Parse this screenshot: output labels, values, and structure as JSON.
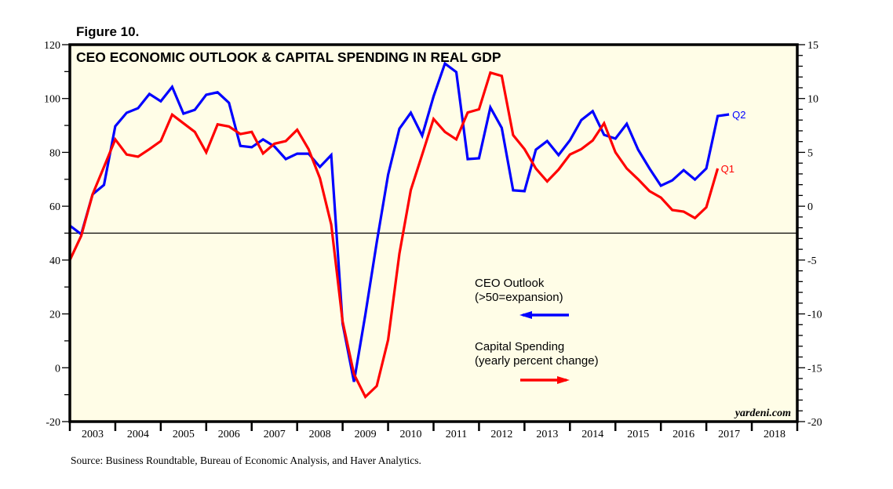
{
  "figure_label": "Figure 10.",
  "source_note": "Source: Business Roundtable, Bureau of Economic Analysis, and Haver Analytics.",
  "watermark": "yardeni.com",
  "colors": {
    "plot_background": "#FFFDE7",
    "ceo_outlook": "#0000FF",
    "capital_spending": "#FF0000",
    "axis": "#000000"
  },
  "chart_data": {
    "type": "line",
    "title": "CEO ECONOMIC OUTLOOK & CAPITAL SPENDING IN REAL GDP",
    "xlabel": "",
    "x_range": [
      2003,
      2019
    ],
    "x_tick_labels": [
      "2003",
      "2004",
      "2005",
      "2006",
      "2007",
      "2008",
      "2009",
      "2010",
      "2011",
      "2012",
      "2013",
      "2014",
      "2015",
      "2016",
      "2017",
      "2018"
    ],
    "x_start_quarter": "2002Q4",
    "frequency": "quarterly",
    "left_axis": {
      "label": "",
      "ylim": [
        -20,
        120
      ],
      "major_ticks": [
        -20,
        0,
        20,
        40,
        60,
        80,
        100,
        120
      ],
      "minor_step": 10
    },
    "right_axis": {
      "label": "",
      "ylim": [
        -20,
        15
      ],
      "major_ticks": [
        -20,
        -15,
        -10,
        -5,
        0,
        5,
        10,
        15
      ],
      "minor_step": 1
    },
    "reference_line": {
      "axis": "left",
      "value": 50
    },
    "grid": false,
    "legend": [
      {
        "series": "CEO Outlook",
        "lines": [
          "CEO Outlook",
          "(>50=expansion)"
        ],
        "arrow": "left",
        "placement": "center-right"
      },
      {
        "series": "Capital Spending",
        "lines": [
          "Capital Spending",
          "(yearly percent change)"
        ],
        "arrow": "right",
        "placement": "center-right"
      }
    ],
    "series": [
      {
        "name": "CEO Outlook",
        "axis": "left",
        "end_label": "Q2",
        "values": [
          52.8,
          49.6,
          64.4,
          67.9,
          89.7,
          94.7,
          96.4,
          101.7,
          99.0,
          104.3,
          94.4,
          95.8,
          101.4,
          102.3,
          98.4,
          82.4,
          81.9,
          84.8,
          82.2,
          77.5,
          79.5,
          79.5,
          74.6,
          79.0,
          16.4,
          -5.2,
          19.8,
          46.6,
          71.7,
          88.8,
          94.7,
          86.2,
          100.8,
          113.0,
          109.8,
          77.5,
          77.8,
          96.7,
          89.1,
          65.9,
          65.6,
          81.0,
          84.2,
          79.0,
          84.5,
          92.0,
          95.3,
          86.5,
          85.1,
          90.6,
          81.0,
          74.0,
          67.6,
          69.6,
          73.4,
          69.9,
          74.0,
          93.5,
          94.1
        ]
      },
      {
        "name": "Capital Spending",
        "axis": "right",
        "end_label": "Q1",
        "values": [
          -5.0,
          -2.75,
          1.1,
          3.65,
          6.2,
          4.8,
          4.6,
          5.3,
          6.05,
          8.5,
          7.7,
          6.9,
          5.0,
          7.6,
          7.4,
          6.7,
          6.9,
          4.9,
          5.8,
          6.05,
          7.1,
          5.3,
          2.6,
          -1.7,
          -10.7,
          -15.6,
          -17.7,
          -16.7,
          -12.4,
          -4.4,
          1.5,
          4.8,
          8.1,
          6.9,
          6.2,
          8.7,
          9.0,
          12.4,
          12.1,
          6.6,
          5.3,
          3.5,
          2.3,
          3.4,
          4.8,
          5.3,
          6.1,
          7.7,
          5.0,
          3.5,
          2.5,
          1.4,
          0.8,
          -0.35,
          -0.5,
          -1.1,
          -0.1,
          3.5
        ]
      }
    ]
  }
}
